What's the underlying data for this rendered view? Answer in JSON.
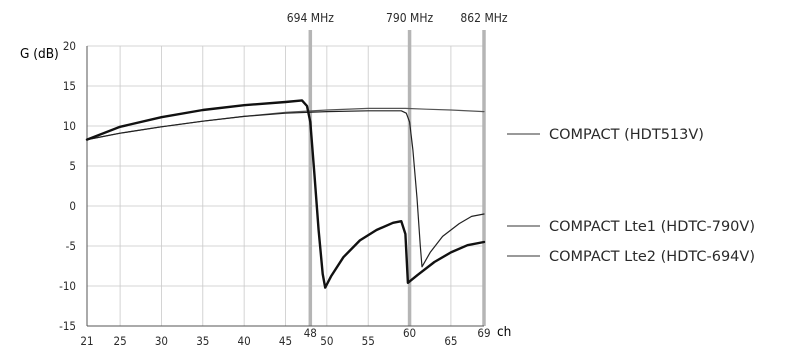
{
  "chart_data": {
    "type": "line",
    "ylabel": "G (dB)",
    "xlabel": "ch",
    "xlim": [
      21,
      69
    ],
    "ylim": [
      -15,
      20
    ],
    "x_ticks": [
      {
        "value": 21,
        "label": "21"
      },
      {
        "value": 25,
        "label": "25"
      },
      {
        "value": 30,
        "label": "30"
      },
      {
        "value": 35,
        "label": "35"
      },
      {
        "value": 40,
        "label": "40"
      },
      {
        "value": 45,
        "label": "45"
      },
      {
        "value": 48,
        "label": "48",
        "raised": true
      },
      {
        "value": 50,
        "label": "50"
      },
      {
        "value": 55,
        "label": "55"
      },
      {
        "value": 60,
        "label": "60",
        "raised": true
      },
      {
        "value": 65,
        "label": "65"
      },
      {
        "value": 69,
        "label": "69",
        "raised": true
      }
    ],
    "y_ticks": [
      20,
      15,
      10,
      5,
      0,
      -5,
      -10,
      -15
    ],
    "frequency_markers": [
      {
        "channel": 48,
        "label": "694 MHz"
      },
      {
        "channel": 60,
        "label": "790 MHz"
      },
      {
        "channel": 69,
        "label": "862 MHz"
      }
    ],
    "series": [
      {
        "name": "COMPACT (HDT513V)",
        "style": "thin",
        "color": "#555555",
        "points": [
          [
            21,
            8.3
          ],
          [
            25,
            9.1
          ],
          [
            30,
            9.9
          ],
          [
            35,
            10.6
          ],
          [
            40,
            11.2
          ],
          [
            45,
            11.7
          ],
          [
            50,
            12.0
          ],
          [
            55,
            12.2
          ],
          [
            59.5,
            12.2
          ],
          [
            62,
            12.1
          ],
          [
            65,
            12.0
          ],
          [
            69,
            11.8
          ]
        ]
      },
      {
        "name": "COMPACT Lte1 (HDTC-790V)",
        "style": "thin",
        "color": "#222222",
        "points": [
          [
            21,
            8.3
          ],
          [
            25,
            9.1
          ],
          [
            30,
            9.9
          ],
          [
            35,
            10.6
          ],
          [
            40,
            11.2
          ],
          [
            45,
            11.6
          ],
          [
            50,
            11.8
          ],
          [
            55,
            11.9
          ],
          [
            59,
            11.9
          ],
          [
            59.6,
            11.6
          ],
          [
            60,
            10.5
          ],
          [
            60.4,
            7.0
          ],
          [
            60.9,
            1.0
          ],
          [
            61.3,
            -5.0
          ],
          [
            61.5,
            -7.6
          ],
          [
            62.5,
            -5.8
          ],
          [
            64,
            -3.8
          ],
          [
            66,
            -2.2
          ],
          [
            67.5,
            -1.3
          ],
          [
            69,
            -1.0
          ]
        ]
      },
      {
        "name": "COMPACT Lte2 (HDTC-694V)",
        "style": "thick",
        "color": "#111111",
        "points": [
          [
            21,
            8.3
          ],
          [
            25,
            9.9
          ],
          [
            30,
            11.1
          ],
          [
            35,
            12.0
          ],
          [
            40,
            12.6
          ],
          [
            45,
            13.0
          ],
          [
            47,
            13.2
          ],
          [
            47.6,
            12.5
          ],
          [
            48,
            10.5
          ],
          [
            48.5,
            4.0
          ],
          [
            49,
            -3.0
          ],
          [
            49.5,
            -8.5
          ],
          [
            49.8,
            -10.2
          ],
          [
            50.5,
            -8.8
          ],
          [
            52,
            -6.4
          ],
          [
            54,
            -4.3
          ],
          [
            56,
            -3.0
          ],
          [
            58,
            -2.1
          ],
          [
            59,
            -1.9
          ],
          [
            59.5,
            -3.5
          ],
          [
            59.8,
            -9.6
          ],
          [
            61,
            -8.6
          ],
          [
            63,
            -7.0
          ],
          [
            65,
            -5.8
          ],
          [
            67,
            -4.9
          ],
          [
            69,
            -4.5
          ]
        ]
      }
    ]
  },
  "legend": [
    {
      "label": "COMPACT (HDT513V)",
      "anchor_y": 12.2
    },
    {
      "label": "COMPACT Lte1 (HDTC-790V)",
      "anchor_y": -1.0
    },
    {
      "label": "COMPACT Lte2 (HDTC-694V)",
      "anchor_y": -4.5
    }
  ]
}
